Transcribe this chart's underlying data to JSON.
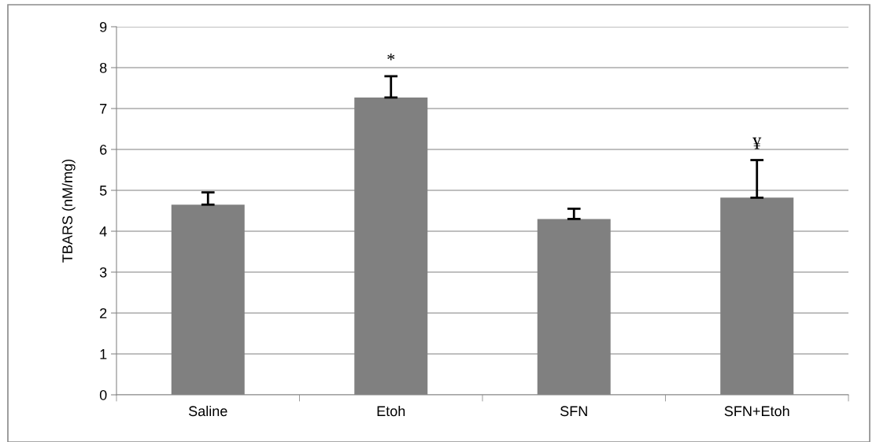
{
  "chart_data": {
    "type": "bar",
    "ylabel": "TBARS (nM/mg)",
    "categories": [
      "Saline",
      "Etoh",
      "SFN",
      "SFN+Etoh"
    ],
    "values": [
      4.65,
      7.27,
      4.3,
      4.82
    ],
    "errors": [
      [
        4.65,
        4.95
      ],
      [
        7.27,
        7.79
      ],
      [
        4.3,
        4.55
      ],
      [
        4.82,
        5.74
      ]
    ],
    "color": "#808080",
    "ylim": [
      0,
      9
    ],
    "yticks": [
      0,
      1,
      2,
      3,
      4,
      5,
      6,
      7,
      8,
      9
    ],
    "grid": "y",
    "annotations": [
      "*",
      "¥"
    ]
  }
}
